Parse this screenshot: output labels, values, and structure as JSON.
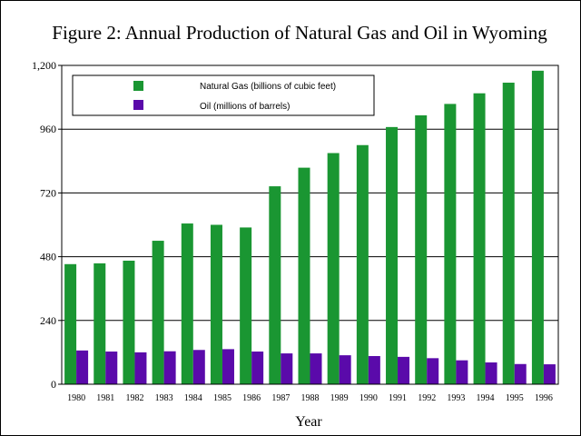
{
  "chart_data": {
    "type": "bar",
    "title": "Figure 2:  Annual Production of Natural Gas and Oil in Wyoming",
    "xlabel": "Year",
    "ylabel": "",
    "ylim": [
      0,
      1200
    ],
    "yticks": [
      "0",
      "240",
      "480",
      "720",
      "960",
      "1,200"
    ],
    "ytick_values": [
      0,
      240,
      480,
      720,
      960,
      1200
    ],
    "grid": true,
    "legend_position": "top-left",
    "categories": [
      "1980",
      "1981",
      "1982",
      "1983",
      "1984",
      "1985",
      "1986",
      "1987",
      "1988",
      "1989",
      "1990",
      "1991",
      "1992",
      "1993",
      "1994",
      "1995",
      "1996"
    ],
    "series": [
      {
        "name": "Natural Gas (billions of cubic feet)",
        "color": "#1a9632",
        "values": [
          452,
          455,
          465,
          540,
          605,
          600,
          590,
          745,
          815,
          870,
          900,
          968,
          1012,
          1055,
          1095,
          1135,
          1180
        ]
      },
      {
        "name": "Oil (millions of barrels)",
        "color": "#5a0aaa",
        "values": [
          127,
          123,
          120,
          124,
          129,
          132,
          123,
          116,
          116,
          109,
          106,
          103,
          98,
          90,
          82,
          76,
          75
        ]
      }
    ]
  }
}
